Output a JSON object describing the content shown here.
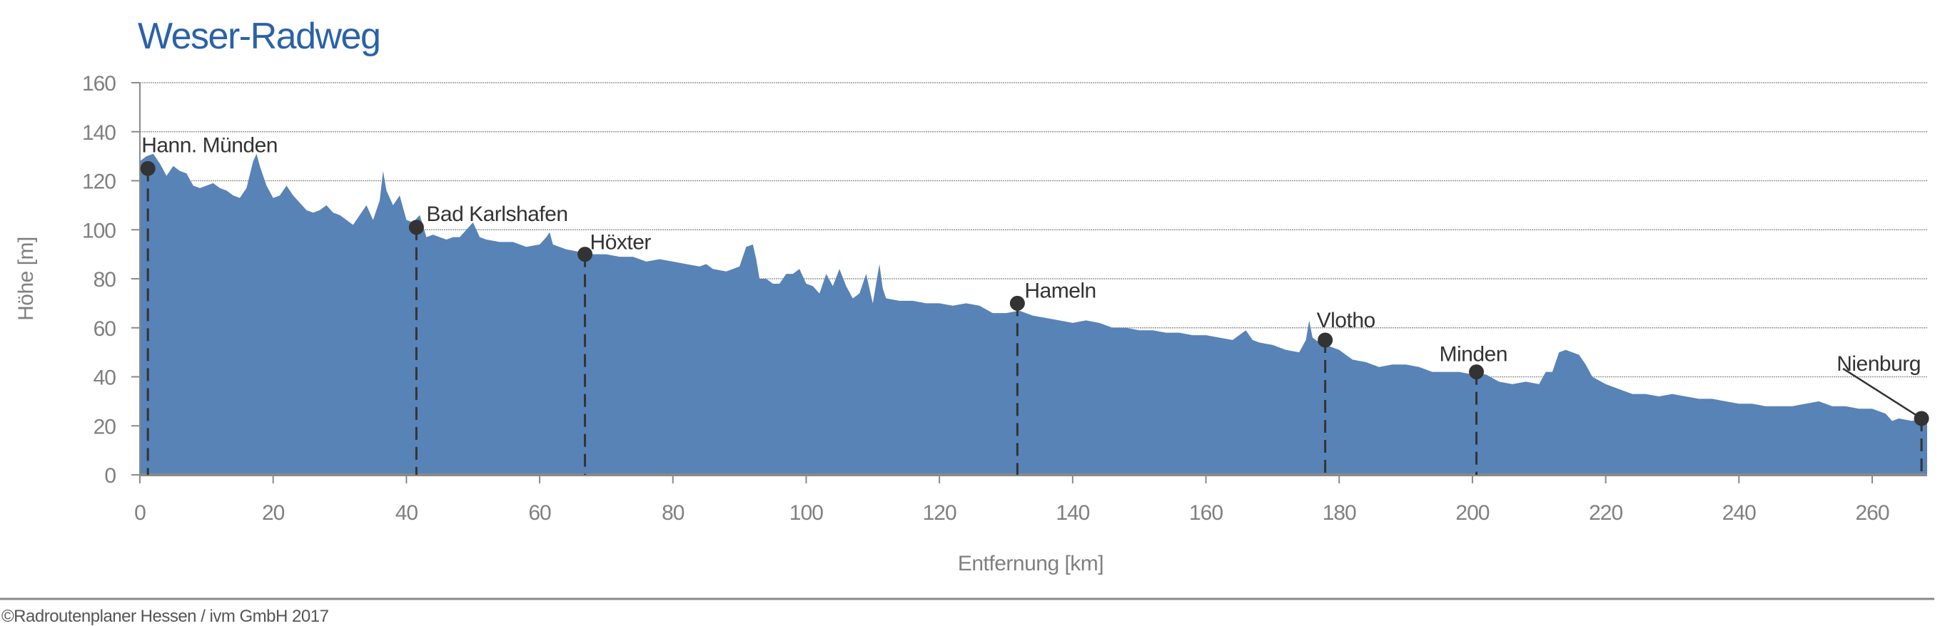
{
  "chart_data": {
    "type": "area",
    "title": "Weser-Radweg",
    "xlabel": "Entfernung [km]",
    "ylabel": "Höhe [m]",
    "xlim": [
      0,
      268
    ],
    "ylim": [
      0,
      160
    ],
    "xticks": [
      0,
      20,
      40,
      60,
      80,
      100,
      120,
      140,
      160,
      180,
      200,
      220,
      240,
      260
    ],
    "yticks": [
      0,
      20,
      40,
      60,
      80,
      100,
      120,
      140,
      160
    ],
    "grid": true,
    "profile": [
      [
        0,
        128
      ],
      [
        1,
        130
      ],
      [
        2,
        131
      ],
      [
        3,
        127
      ],
      [
        4,
        122
      ],
      [
        5,
        126
      ],
      [
        6,
        124
      ],
      [
        7,
        123
      ],
      [
        8,
        118
      ],
      [
        9,
        117
      ],
      [
        10,
        118
      ],
      [
        11,
        119
      ],
      [
        12,
        117
      ],
      [
        13,
        116
      ],
      [
        14,
        114
      ],
      [
        15,
        113
      ],
      [
        16,
        117
      ],
      [
        17,
        128
      ],
      [
        17.5,
        131
      ],
      [
        18,
        126
      ],
      [
        19,
        118
      ],
      [
        20,
        113
      ],
      [
        21,
        114
      ],
      [
        22,
        118
      ],
      [
        23,
        114
      ],
      [
        24,
        111
      ],
      [
        25,
        108
      ],
      [
        26,
        107
      ],
      [
        27,
        108
      ],
      [
        28,
        110
      ],
      [
        29,
        107
      ],
      [
        30,
        106
      ],
      [
        31,
        104
      ],
      [
        32,
        102
      ],
      [
        33,
        106
      ],
      [
        34,
        110
      ],
      [
        35,
        104
      ],
      [
        36,
        112
      ],
      [
        36.5,
        124
      ],
      [
        37,
        116
      ],
      [
        38,
        110
      ],
      [
        39,
        114
      ],
      [
        40,
        104
      ],
      [
        41,
        103
      ],
      [
        42,
        106
      ],
      [
        43,
        97
      ],
      [
        44,
        98
      ],
      [
        45,
        97
      ],
      [
        46,
        96
      ],
      [
        47,
        97
      ],
      [
        48,
        97
      ],
      [
        49,
        100
      ],
      [
        50,
        103
      ],
      [
        51,
        97
      ],
      [
        52,
        96
      ],
      [
        54,
        95
      ],
      [
        56,
        95
      ],
      [
        58,
        93
      ],
      [
        60,
        94
      ],
      [
        61,
        97
      ],
      [
        61.5,
        99
      ],
      [
        62,
        94
      ],
      [
        64,
        92
      ],
      [
        66,
        91
      ],
      [
        68,
        90
      ],
      [
        70,
        90
      ],
      [
        72,
        89
      ],
      [
        74,
        89
      ],
      [
        76,
        87
      ],
      [
        78,
        88
      ],
      [
        80,
        87
      ],
      [
        82,
        86
      ],
      [
        84,
        85
      ],
      [
        85,
        86
      ],
      [
        86,
        84
      ],
      [
        88,
        83
      ],
      [
        90,
        85
      ],
      [
        91,
        93
      ],
      [
        92,
        94
      ],
      [
        92.5,
        88
      ],
      [
        93,
        80
      ],
      [
        94,
        80
      ],
      [
        95,
        78
      ],
      [
        96,
        78
      ],
      [
        97,
        82
      ],
      [
        98,
        82
      ],
      [
        99,
        84
      ],
      [
        100,
        78
      ],
      [
        101,
        77
      ],
      [
        102,
        74
      ],
      [
        103,
        82
      ],
      [
        104,
        77
      ],
      [
        105,
        84
      ],
      [
        106,
        77
      ],
      [
        107,
        72
      ],
      [
        108,
        74
      ],
      [
        109,
        82
      ],
      [
        110,
        70
      ],
      [
        111,
        86
      ],
      [
        111.5,
        76
      ],
      [
        112,
        72
      ],
      [
        114,
        71
      ],
      [
        116,
        71
      ],
      [
        118,
        70
      ],
      [
        120,
        70
      ],
      [
        122,
        69
      ],
      [
        124,
        70
      ],
      [
        126,
        69
      ],
      [
        128,
        66
      ],
      [
        130,
        66
      ],
      [
        132,
        67
      ],
      [
        134,
        65
      ],
      [
        136,
        64
      ],
      [
        138,
        63
      ],
      [
        140,
        62
      ],
      [
        142,
        63
      ],
      [
        144,
        62
      ],
      [
        146,
        60
      ],
      [
        148,
        60
      ],
      [
        150,
        59
      ],
      [
        152,
        59
      ],
      [
        154,
        58
      ],
      [
        156,
        58
      ],
      [
        158,
        57
      ],
      [
        160,
        57
      ],
      [
        162,
        56
      ],
      [
        164,
        55
      ],
      [
        166,
        59
      ],
      [
        167,
        55
      ],
      [
        168,
        54
      ],
      [
        170,
        53
      ],
      [
        172,
        51
      ],
      [
        174,
        50
      ],
      [
        175,
        55
      ],
      [
        175.5,
        63
      ],
      [
        176,
        56
      ],
      [
        177,
        54
      ],
      [
        178,
        53
      ],
      [
        179,
        52
      ],
      [
        180,
        51
      ],
      [
        182,
        47
      ],
      [
        184,
        46
      ],
      [
        186,
        44
      ],
      [
        188,
        45
      ],
      [
        190,
        45
      ],
      [
        192,
        44
      ],
      [
        194,
        42
      ],
      [
        196,
        42
      ],
      [
        198,
        42
      ],
      [
        200,
        41
      ],
      [
        202,
        41
      ],
      [
        204,
        38
      ],
      [
        206,
        37
      ],
      [
        208,
        38
      ],
      [
        210,
        37
      ],
      [
        211,
        42
      ],
      [
        212,
        42
      ],
      [
        213,
        50
      ],
      [
        214,
        51
      ],
      [
        216,
        49
      ],
      [
        217,
        45
      ],
      [
        218,
        40
      ],
      [
        220,
        37
      ],
      [
        222,
        35
      ],
      [
        224,
        33
      ],
      [
        226,
        33
      ],
      [
        228,
        32
      ],
      [
        230,
        33
      ],
      [
        232,
        32
      ],
      [
        234,
        31
      ],
      [
        236,
        31
      ],
      [
        238,
        30
      ],
      [
        240,
        29
      ],
      [
        242,
        29
      ],
      [
        244,
        28
      ],
      [
        246,
        28
      ],
      [
        248,
        28
      ],
      [
        250,
        29
      ],
      [
        252,
        30
      ],
      [
        254,
        28
      ],
      [
        256,
        28
      ],
      [
        258,
        27
      ],
      [
        260,
        27
      ],
      [
        262,
        25
      ],
      [
        263,
        22
      ],
      [
        264,
        23
      ],
      [
        266,
        22
      ],
      [
        267.4,
        23
      ],
      [
        268,
        22
      ]
    ],
    "markers": [
      {
        "name": "Hann. Münden",
        "km": 1.2,
        "m": 125
      },
      {
        "name": "Bad Karlshafen",
        "km": 41.5,
        "m": 101
      },
      {
        "name": "Höxter",
        "km": 66.8,
        "m": 90
      },
      {
        "name": "Hameln",
        "km": 131.7,
        "m": 70
      },
      {
        "name": "Vlotho",
        "km": 177.9,
        "m": 55
      },
      {
        "name": "Minden",
        "km": 200.6,
        "m": 42
      },
      {
        "name": "Nienburg",
        "km": 267.4,
        "m": 23
      }
    ],
    "colors": {
      "area": "#5883b7",
      "title": "#2a62a8",
      "marker": "#333333",
      "axis": "#8a8a8a"
    }
  },
  "footer": {
    "copyright": "©Radroutenplaner Hessen / ivm GmbH 2017"
  }
}
